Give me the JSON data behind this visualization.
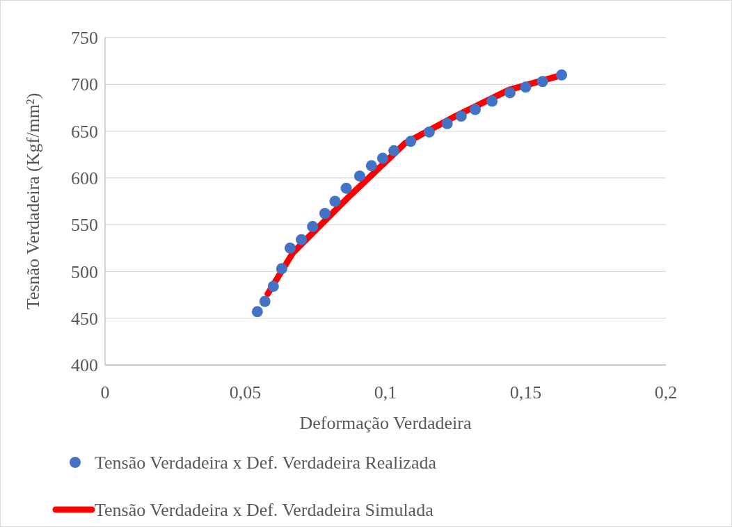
{
  "chart_data": {
    "type": "scatter",
    "xlabel": "Deformação Verdadeira",
    "ylabel": "Tesnão Verdadeira (Kgf/mm²)",
    "xlim": [
      0,
      0.2
    ],
    "xticks": [
      {
        "value": 0,
        "label": "0"
      },
      {
        "value": 0.05,
        "label": "0,05"
      },
      {
        "value": 0.1,
        "label": "0,1"
      },
      {
        "value": 0.15,
        "label": "0,15"
      },
      {
        "value": 0.2,
        "label": "0,2"
      }
    ],
    "ylim": [
      400,
      750
    ],
    "yticks": [
      400,
      450,
      500,
      550,
      600,
      650,
      700,
      750
    ],
    "grid": "y",
    "legend": "bottom",
    "series": [
      {
        "name": "Tensão Verdadeira x Def. Verdadeira Realizada",
        "marker": "circle",
        "color": "#4472c4",
        "x": [
          0.0543,
          0.057,
          0.06,
          0.063,
          0.066,
          0.07,
          0.074,
          0.0784,
          0.082,
          0.086,
          0.0908,
          0.095,
          0.099,
          0.103,
          0.109,
          0.1156,
          0.122,
          0.127,
          0.132,
          0.138,
          0.1444,
          0.15,
          0.156,
          0.1628
        ],
        "values": [
          457,
          468,
          484,
          503,
          525,
          534,
          548,
          562,
          575,
          589,
          602,
          613,
          621,
          629,
          639,
          649,
          658,
          666,
          673,
          682,
          691,
          697,
          703,
          710
        ]
      },
      {
        "name": "Tensão Verdadeira x Def. Verdadeira Simulada",
        "type": "line",
        "line_style": "solid",
        "color": "#ff0000",
        "x": [
          0.058,
          0.067,
          0.087,
          0.107,
          0.125,
          0.144,
          0.163
        ],
        "values": [
          476,
          520,
          580,
          637,
          666,
          694,
          710
        ]
      }
    ]
  }
}
